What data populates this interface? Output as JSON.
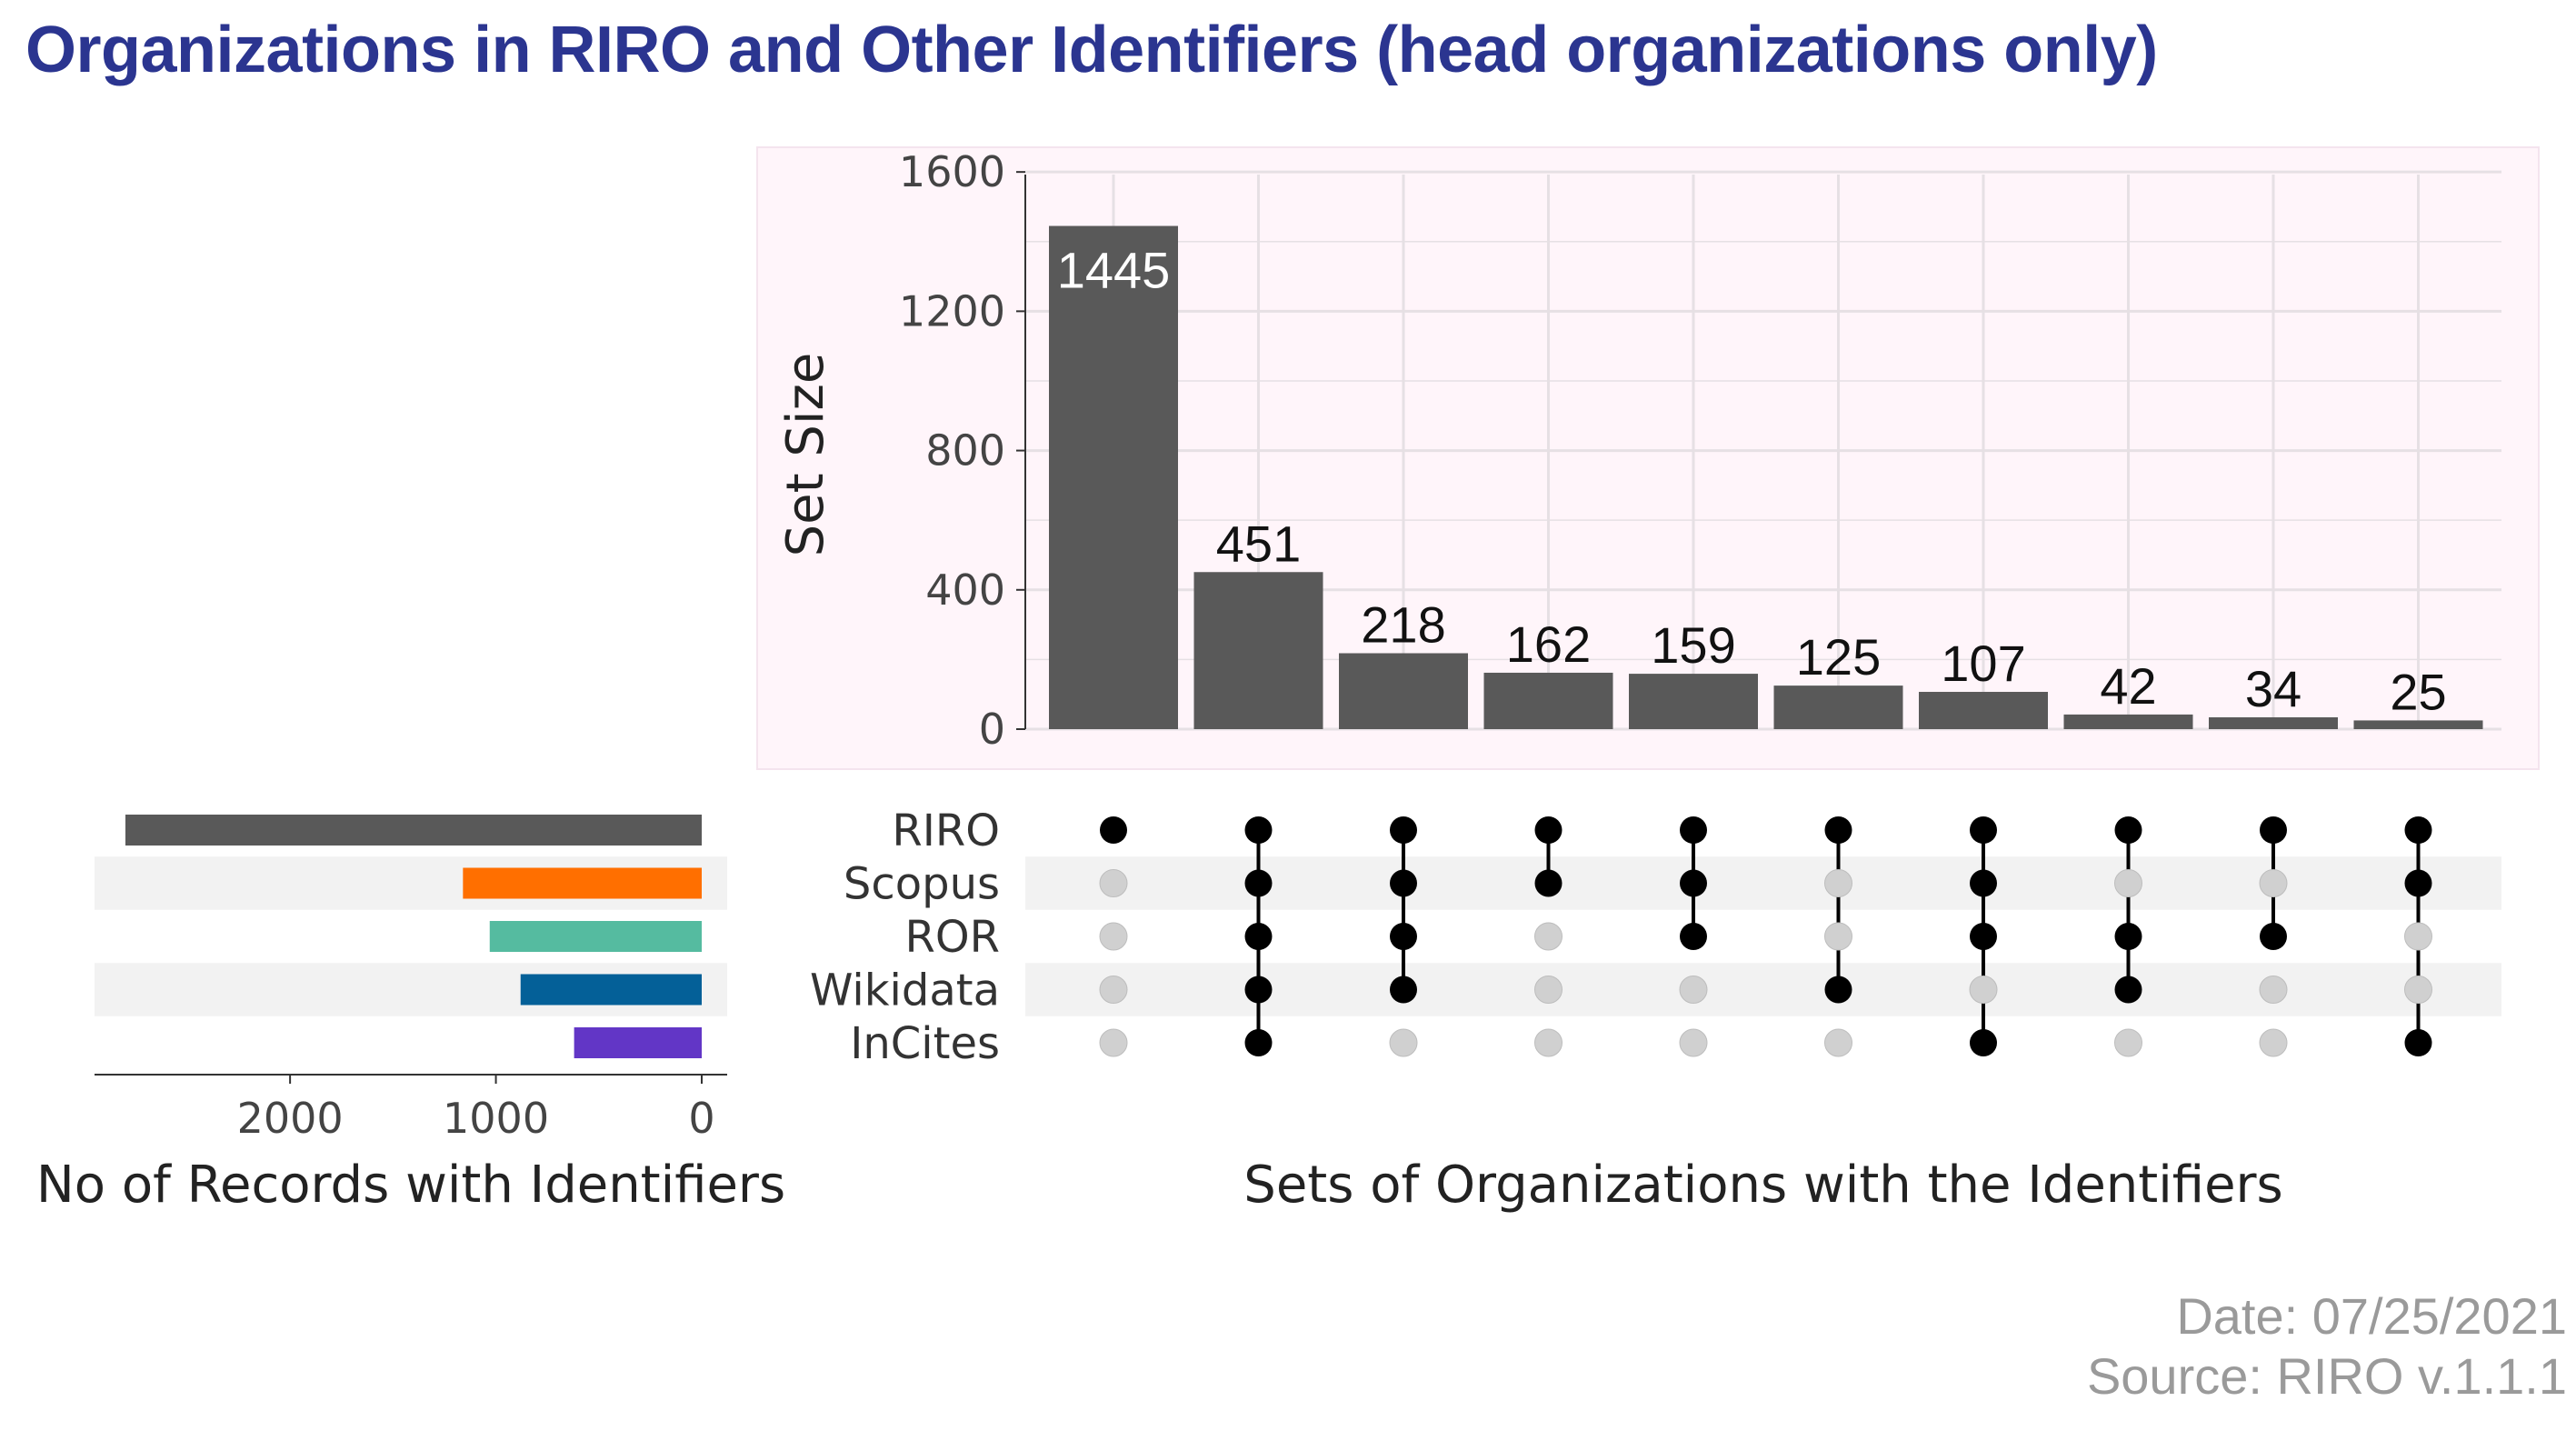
{
  "title": "Organizations in RIRO and Other Identifiers (head organizations only)",
  "footer": {
    "date": "Date: 07/25/2021",
    "source": "Source: RIRO v.1.1.1"
  },
  "chart_data": {
    "type": "bar",
    "title": "Organizations in RIRO and Other Identifiers (head organizations only)",
    "intersections": {
      "ylabel": "Set Size",
      "xlabel": "Sets of Organizations with the Identifiers",
      "ylim": [
        0,
        1650
      ],
      "yticks": [
        0,
        400,
        800,
        1200,
        1600
      ],
      "values": [
        1445,
        451,
        218,
        162,
        159,
        125,
        107,
        42,
        34,
        25
      ],
      "members": [
        [
          "RIRO"
        ],
        [
          "RIRO",
          "Scopus",
          "ROR",
          "Wikidata",
          "InCites"
        ],
        [
          "RIRO",
          "Scopus",
          "ROR",
          "Wikidata"
        ],
        [
          "RIRO",
          "Scopus"
        ],
        [
          "RIRO",
          "Scopus",
          "ROR"
        ],
        [
          "RIRO",
          "Wikidata"
        ],
        [
          "RIRO",
          "Scopus",
          "ROR",
          "InCites"
        ],
        [
          "RIRO",
          "ROR",
          "Wikidata"
        ],
        [
          "RIRO",
          "ROR"
        ],
        [
          "RIRO",
          "Scopus",
          "InCites"
        ]
      ],
      "bar_color": "#595959",
      "background": "#fff5fa"
    },
    "sets": {
      "names": [
        "RIRO",
        "Scopus",
        "ROR",
        "Wikidata",
        "InCites"
      ],
      "values": [
        2800,
        1160,
        1030,
        880,
        620
      ],
      "colors": [
        "#595959",
        "#ff6f00",
        "#55bba0",
        "#046098",
        "#6236c6"
      ],
      "xlabel": "No of Records with Identifiers",
      "xticks": [
        2000,
        1000,
        0
      ],
      "xlim": [
        2950,
        0
      ]
    },
    "matrix": {
      "active_color": "#000000",
      "inactive_color": "#d0d0d0",
      "stripe_color": "#f2f2f2"
    }
  }
}
